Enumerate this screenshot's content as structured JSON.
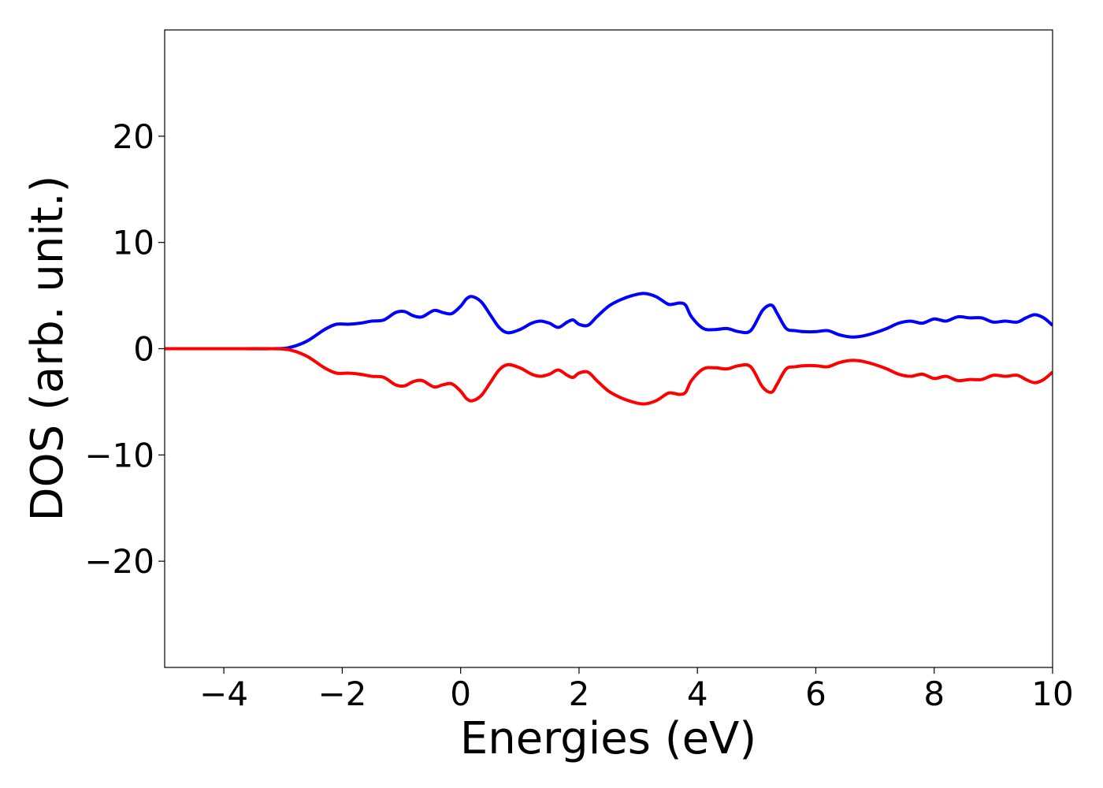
{
  "chart_data": {
    "type": "line",
    "title": "",
    "xlabel": "Energies (eV)",
    "ylabel": "DOS (arb. unit.)",
    "xlim": [
      -5,
      10
    ],
    "ylim": [
      -30,
      30
    ],
    "xticks": [
      -4,
      -2,
      0,
      2,
      4,
      6,
      8,
      10
    ],
    "xtick_labels": [
      "−4",
      "−2",
      "0",
      "2",
      "4",
      "6",
      "8",
      "10"
    ],
    "yticks": [
      -20,
      -10,
      0,
      10,
      20
    ],
    "ytick_labels": [
      "−20",
      "−10",
      "0",
      "10",
      "20"
    ],
    "grid": false,
    "legend": "none",
    "series": [
      {
        "color": "#0000ff",
        "x": [
          -5,
          -4,
          -3.2,
          -2.9,
          -2.6,
          -2.3,
          -2.1,
          -1.9,
          -1.7,
          -1.5,
          -1.3,
          -1.1,
          -0.95,
          -0.8,
          -0.65,
          -0.45,
          -0.3,
          -0.15,
          0,
          0.1,
          0.2,
          0.35,
          0.5,
          0.65,
          0.8,
          1.0,
          1.2,
          1.35,
          1.5,
          1.65,
          1.8,
          1.9,
          2.0,
          2.15,
          2.3,
          2.5,
          2.7,
          2.9,
          3.1,
          3.3,
          3.5,
          3.6,
          3.7,
          3.8,
          3.9,
          4.1,
          4.3,
          4.5,
          4.7,
          4.9,
          5.1,
          5.25,
          5.35,
          5.5,
          5.65,
          5.8,
          6.0,
          6.2,
          6.4,
          6.6,
          6.8,
          7.0,
          7.2,
          7.4,
          7.6,
          7.8,
          8.0,
          8.2,
          8.4,
          8.6,
          8.8,
          9.0,
          9.2,
          9.4,
          9.55,
          9.7,
          9.85,
          10
        ],
        "y": [
          0,
          0,
          0,
          0.1,
          0.7,
          1.8,
          2.3,
          2.3,
          2.4,
          2.6,
          2.7,
          3.4,
          3.5,
          3.1,
          3.0,
          3.6,
          3.4,
          3.3,
          4.0,
          4.7,
          4.9,
          4.4,
          3.2,
          2.0,
          1.5,
          1.8,
          2.4,
          2.6,
          2.4,
          2.0,
          2.5,
          2.7,
          2.3,
          2.2,
          3.0,
          4.0,
          4.6,
          5.0,
          5.2,
          4.9,
          4.2,
          4.2,
          4.3,
          4.1,
          3.0,
          1.9,
          1.8,
          1.9,
          1.6,
          1.7,
          3.6,
          4.1,
          3.3,
          1.9,
          1.7,
          1.6,
          1.6,
          1.7,
          1.3,
          1.1,
          1.2,
          1.5,
          1.9,
          2.4,
          2.6,
          2.4,
          2.8,
          2.6,
          3.0,
          2.9,
          2.9,
          2.5,
          2.6,
          2.5,
          2.9,
          3.2,
          2.9,
          2.2
        ]
      },
      {
        "color": "#ff0000",
        "x": [
          -5,
          -4,
          -3.2,
          -2.9,
          -2.6,
          -2.3,
          -2.1,
          -1.9,
          -1.7,
          -1.5,
          -1.3,
          -1.1,
          -0.95,
          -0.8,
          -0.65,
          -0.45,
          -0.3,
          -0.15,
          0,
          0.1,
          0.2,
          0.35,
          0.5,
          0.65,
          0.8,
          1.0,
          1.2,
          1.35,
          1.5,
          1.65,
          1.8,
          1.9,
          2.0,
          2.15,
          2.3,
          2.5,
          2.7,
          2.9,
          3.1,
          3.3,
          3.5,
          3.6,
          3.7,
          3.8,
          3.9,
          4.1,
          4.3,
          4.5,
          4.7,
          4.9,
          5.1,
          5.25,
          5.35,
          5.5,
          5.65,
          5.8,
          6.0,
          6.2,
          6.4,
          6.6,
          6.8,
          7.0,
          7.2,
          7.4,
          7.6,
          7.8,
          8.0,
          8.2,
          8.4,
          8.6,
          8.8,
          9.0,
          9.2,
          9.4,
          9.55,
          9.7,
          9.85,
          10
        ],
        "y": [
          0,
          0,
          0,
          -0.1,
          -0.7,
          -1.8,
          -2.3,
          -2.3,
          -2.4,
          -2.6,
          -2.7,
          -3.4,
          -3.5,
          -3.1,
          -3.0,
          -3.6,
          -3.4,
          -3.3,
          -4.0,
          -4.7,
          -4.9,
          -4.4,
          -3.2,
          -2.0,
          -1.5,
          -1.8,
          -2.4,
          -2.6,
          -2.4,
          -2.0,
          -2.5,
          -2.7,
          -2.3,
          -2.2,
          -3.0,
          -4.0,
          -4.6,
          -5.0,
          -5.2,
          -4.9,
          -4.2,
          -4.2,
          -4.3,
          -4.1,
          -3.0,
          -1.9,
          -1.8,
          -1.9,
          -1.6,
          -1.7,
          -3.6,
          -4.1,
          -3.3,
          -1.9,
          -1.7,
          -1.6,
          -1.6,
          -1.7,
          -1.3,
          -1.1,
          -1.2,
          -1.5,
          -1.9,
          -2.4,
          -2.6,
          -2.4,
          -2.8,
          -2.6,
          -3.0,
          -2.9,
          -2.9,
          -2.5,
          -2.6,
          -2.5,
          -2.9,
          -3.2,
          -2.9,
          -2.2
        ]
      }
    ]
  }
}
